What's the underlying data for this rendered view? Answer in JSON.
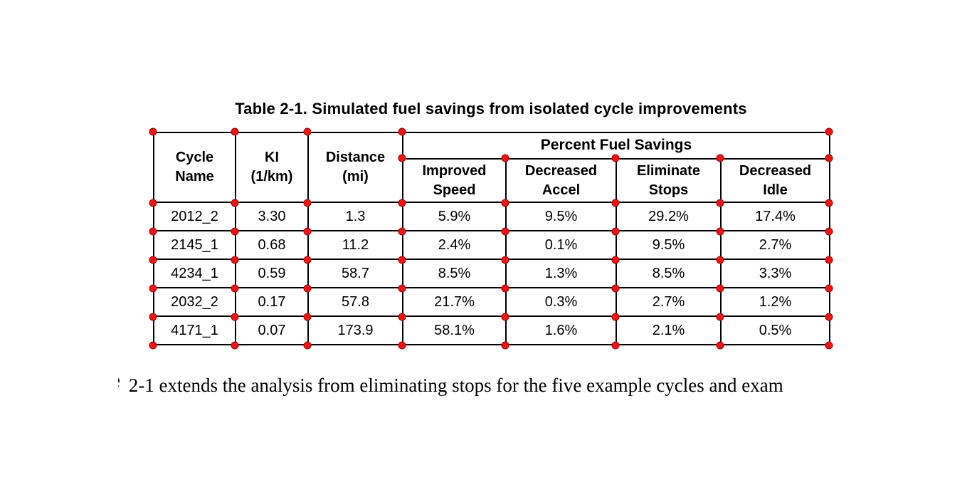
{
  "caption": "Table 2-1. Simulated fuel savings from isolated cycle improvements",
  "colors": {
    "marker": "#f01414",
    "border": "#000000",
    "text": "#000000",
    "background": "#ffffff"
  },
  "table": {
    "span_header": "Percent Fuel Savings",
    "columns": [
      {
        "line1": "Cycle",
        "line2": "Name"
      },
      {
        "line1": "KI",
        "line2": "(1/km)"
      },
      {
        "line1": "Distance",
        "line2": "(mi)"
      },
      {
        "line1": "Improved",
        "line2": "Speed"
      },
      {
        "line1": "Decreased",
        "line2": "Accel"
      },
      {
        "line1": "Eliminate",
        "line2": "Stops"
      },
      {
        "line1": "Decreased",
        "line2": "Idle"
      }
    ],
    "rows": [
      {
        "cells": [
          "2012_2",
          "3.30",
          "1.3",
          "5.9%",
          "9.5%",
          "29.2%",
          "17.4%"
        ]
      },
      {
        "cells": [
          "2145_1",
          "0.68",
          "11.2",
          "2.4%",
          "0.1%",
          "9.5%",
          "2.7%"
        ]
      },
      {
        "cells": [
          "4234_1",
          "0.59",
          "58.7",
          "8.5%",
          "1.3%",
          "8.5%",
          "3.3%"
        ]
      },
      {
        "cells": [
          "2032_2",
          "0.17",
          "57.8",
          "21.7%",
          "0.3%",
          "2.7%",
          "1.2%"
        ]
      },
      {
        "cells": [
          "4171_1",
          "0.07",
          "173.9",
          "58.1%",
          "1.6%",
          "2.1%",
          "0.5%"
        ]
      }
    ]
  },
  "body": {
    "fragment": "e",
    "text": "2-1 extends the analysis from eliminating stops for the five example cycles and exam"
  }
}
